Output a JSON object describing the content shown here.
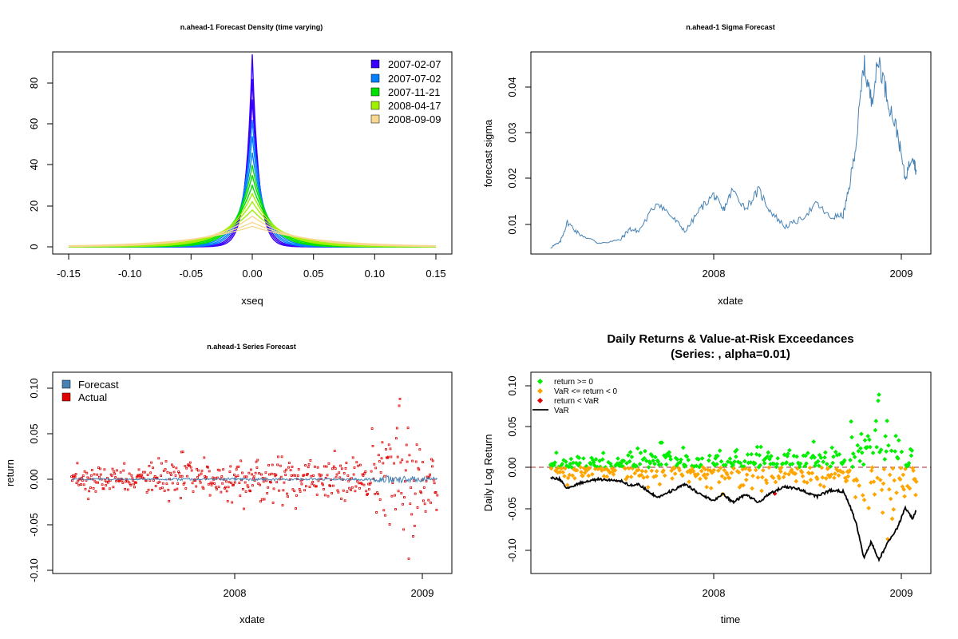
{
  "colors": {
    "blue": "#3800ff",
    "azure": "#0080ff",
    "green": "#00e000",
    "yellowgreen": "#a0f000",
    "sand": "#f8d890",
    "forecast": "#4682b4",
    "actual": "#e00000",
    "pos": "#00ee00",
    "neg": "#ffa500",
    "exceed": "#e00000",
    "var": "#000000",
    "zero": "#a52a2a"
  },
  "chart_data": [
    {
      "type": "line",
      "title": "n.ahead-1 Forecast Density (time varying)",
      "xlabel": "xseq",
      "ylabel": "",
      "xlim": [
        -0.15,
        0.15
      ],
      "ylim": [
        0,
        95
      ],
      "x_ticks": [
        "-0.15",
        "-0.10",
        "-0.05",
        "0.00",
        "0.05",
        "0.10",
        "0.15"
      ],
      "y_ticks": [
        "0",
        "20",
        "40",
        "60",
        "80"
      ],
      "legend": [
        "2007-02-07",
        "2007-07-02",
        "2007-11-21",
        "2008-04-17",
        "2008-09-09"
      ],
      "legend_position": "top-right",
      "peak_heights": [
        94,
        82,
        72,
        62,
        54,
        46,
        40,
        35,
        30,
        26,
        22,
        18,
        15,
        12,
        10
      ]
    },
    {
      "type": "line",
      "title": "n.ahead-1 Sigma Forecast",
      "xlabel": "xdate",
      "ylabel": "forecast sigma",
      "xlim": [
        2007.1,
        2009.15
      ],
      "ylim": [
        0.004,
        0.047
      ],
      "x_ticks": [
        "2008",
        "2009"
      ],
      "y_ticks": [
        "0.01",
        "0.02",
        "0.03",
        "0.04"
      ],
      "anchors": [
        [
          2007.13,
          0.005
        ],
        [
          2007.18,
          0.006
        ],
        [
          2007.22,
          0.0105
        ],
        [
          2007.28,
          0.008
        ],
        [
          2007.38,
          0.006
        ],
        [
          2007.5,
          0.0065
        ],
        [
          2007.55,
          0.009
        ],
        [
          2007.6,
          0.0085
        ],
        [
          2007.7,
          0.015
        ],
        [
          2007.78,
          0.0115
        ],
        [
          2007.85,
          0.0085
        ],
        [
          2007.93,
          0.0135
        ],
        [
          2008.0,
          0.0165
        ],
        [
          2008.05,
          0.013
        ],
        [
          2008.1,
          0.0175
        ],
        [
          2008.17,
          0.0135
        ],
        [
          2008.24,
          0.0175
        ],
        [
          2008.3,
          0.013
        ],
        [
          2008.38,
          0.0095
        ],
        [
          2008.46,
          0.011
        ],
        [
          2008.55,
          0.0145
        ],
        [
          2008.62,
          0.0115
        ],
        [
          2008.69,
          0.012
        ],
        [
          2008.72,
          0.0175
        ],
        [
          2008.76,
          0.028
        ],
        [
          2008.8,
          0.045
        ],
        [
          2008.84,
          0.037
        ],
        [
          2008.88,
          0.046
        ],
        [
          2008.93,
          0.037
        ],
        [
          2008.98,
          0.03
        ],
        [
          2009.02,
          0.02
        ],
        [
          2009.06,
          0.0255
        ],
        [
          2009.08,
          0.0215
        ]
      ]
    },
    {
      "type": "scatter",
      "title": "n.ahead-1 Series Forecast",
      "xlabel": "xdate",
      "ylabel": "return",
      "xlim": [
        2007.1,
        2009.15
      ],
      "ylim": [
        -0.105,
        0.115
      ],
      "x_ticks": [
        "2008",
        "2009"
      ],
      "y_ticks": [
        "-0.10",
        "-0.05",
        "0.00",
        "0.05",
        "0.10"
      ],
      "series": [
        {
          "name": "Forecast",
          "values": []
        },
        {
          "name": "Actual",
          "values": []
        }
      ],
      "legend_position": "top-left"
    },
    {
      "type": "scatter",
      "title": "Daily Returns & Value-at-Risk Exceedances",
      "subtitle": "(Series: , alpha=0.01)",
      "xlabel": "time",
      "ylabel": "Daily Log Return",
      "xlim": [
        2007.1,
        2009.15
      ],
      "ylim": [
        -0.13,
        0.115
      ],
      "x_ticks": [
        "2008",
        "2009"
      ],
      "y_ticks": [
        "-0.10",
        "-0.05",
        "0.00",
        "0.05",
        "0.10"
      ],
      "series": [
        {
          "name": "return >= 0",
          "values": []
        },
        {
          "name": "VaR <= return < 0",
          "values": []
        },
        {
          "name": "return < VaR",
          "values": []
        },
        {
          "name": "VaR",
          "values": []
        }
      ],
      "legend_position": "top-left"
    }
  ]
}
